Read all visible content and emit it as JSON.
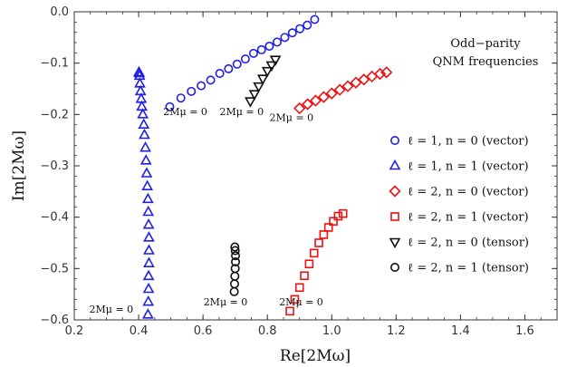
{
  "chart_data": {
    "type": "scatter",
    "title": [
      "Odd−parity",
      "QNM frequencies"
    ],
    "xlabel": "Re[2Mω]",
    "ylabel": "Im[2Mω]",
    "xlim": [
      0.2,
      1.7
    ],
    "ylim": [
      -0.6,
      0.0
    ],
    "xticks": [
      0.2,
      0.4,
      0.6,
      0.8,
      1.0,
      1.2,
      1.4,
      1.6
    ],
    "xtick_labels": [
      "0.2",
      "0.4",
      "0.6",
      "0.8",
      "1.0",
      "1.2",
      "1.4",
      "1.6"
    ],
    "yticks": [
      0.0,
      -0.1,
      -0.2,
      -0.3,
      -0.4,
      -0.5,
      -0.6
    ],
    "ytick_labels": [
      "0.0",
      "−0.1",
      "−0.2",
      "−0.3",
      "−0.4",
      "−0.5",
      "−0.6"
    ],
    "grid": false,
    "legend_position": "right",
    "annotations": [
      {
        "text": "2Mμ = 0",
        "x": 0.545,
        "y": -0.201
      },
      {
        "text": "2Mμ = 0",
        "x": 0.72,
        "y": -0.201
      },
      {
        "text": "2Mμ = 0",
        "x": 0.875,
        "y": -0.213
      },
      {
        "text": "2Mμ = 0",
        "x": 0.315,
        "y": -0.586
      },
      {
        "text": "2Mμ = 0",
        "x": 0.67,
        "y": -0.572
      },
      {
        "text": "2Mμ = 0",
        "x": 0.905,
        "y": -0.572
      }
    ],
    "series": [
      {
        "name": "ℓ = 1, n = 0 (vector)",
        "marker": "circle",
        "color": "#1f1fe6",
        "x": [
          0.4967,
          0.5312,
          0.5637,
          0.5944,
          0.6238,
          0.652,
          0.6793,
          0.7058,
          0.7317,
          0.757,
          0.7818,
          0.8062,
          0.8303,
          0.8541,
          0.8776,
          0.9009,
          0.924,
          0.947
        ],
        "y": [
          -0.185,
          -0.168,
          -0.155,
          -0.144,
          -0.133,
          -0.12,
          -0.111,
          -0.102,
          -0.092,
          -0.081,
          -0.074,
          -0.067,
          -0.059,
          -0.05,
          -0.041,
          -0.033,
          -0.026,
          -0.015
        ]
      },
      {
        "name": "ℓ = 1, n = 1 (vector)",
        "marker": "triangle-up",
        "color": "#1f1fe6",
        "x": [
          0.429,
          0.43,
          0.431,
          0.431,
          0.432,
          0.432,
          0.432,
          0.431,
          0.43,
          0.429,
          0.427,
          0.425,
          0.423,
          0.421,
          0.418,
          0.416,
          0.413,
          0.41,
          0.408,
          0.406,
          0.404,
          0.403,
          0.402,
          0.401
        ],
        "y": [
          -0.59,
          -0.565,
          -0.54,
          -0.515,
          -0.49,
          -0.465,
          -0.44,
          -0.415,
          -0.39,
          -0.365,
          -0.34,
          -0.315,
          -0.29,
          -0.265,
          -0.24,
          -0.22,
          -0.2,
          -0.185,
          -0.17,
          -0.155,
          -0.14,
          -0.125,
          -0.12,
          -0.118
        ]
      },
      {
        "name": "ℓ = 2, n = 0 (vector)",
        "marker": "diamond",
        "color": "#ee1111",
        "x": [
          0.9,
          0.925,
          0.95,
          0.975,
          1.0,
          1.025,
          1.05,
          1.075,
          1.1,
          1.125,
          1.15,
          1.17
        ],
        "y": [
          -0.188,
          -0.18,
          -0.173,
          -0.166,
          -0.159,
          -0.152,
          -0.145,
          -0.138,
          -0.132,
          -0.126,
          -0.121,
          -0.118
        ]
      },
      {
        "name": "ℓ = 2, n = 1 (vector)",
        "marker": "square",
        "color": "#ee1111",
        "x": [
          0.87,
          0.885,
          0.9,
          0.915,
          0.93,
          0.945,
          0.96,
          0.975,
          0.99,
          1.005,
          1.02,
          1.035
        ],
        "y": [
          -0.583,
          -0.56,
          -0.537,
          -0.514,
          -0.491,
          -0.47,
          -0.45,
          -0.434,
          -0.42,
          -0.408,
          -0.398,
          -0.393
        ]
      },
      {
        "name": "ℓ = 2, n = 0 (tensor)",
        "marker": "triangle-down",
        "color": "#111111",
        "x": [
          0.747,
          0.76,
          0.773,
          0.786,
          0.8,
          0.813,
          0.825
        ],
        "y": [
          -0.174,
          -0.16,
          -0.145,
          -0.13,
          -0.115,
          -0.104,
          -0.093
        ]
      },
      {
        "name": "ℓ = 2, n = 1 (tensor)",
        "marker": "circle",
        "color": "#111111",
        "x": [
          0.697,
          0.698,
          0.699,
          0.7,
          0.701,
          0.701,
          0.7,
          0.699
        ],
        "y": [
          -0.545,
          -0.53,
          -0.515,
          -0.5,
          -0.487,
          -0.475,
          -0.465,
          -0.458
        ]
      }
    ]
  }
}
